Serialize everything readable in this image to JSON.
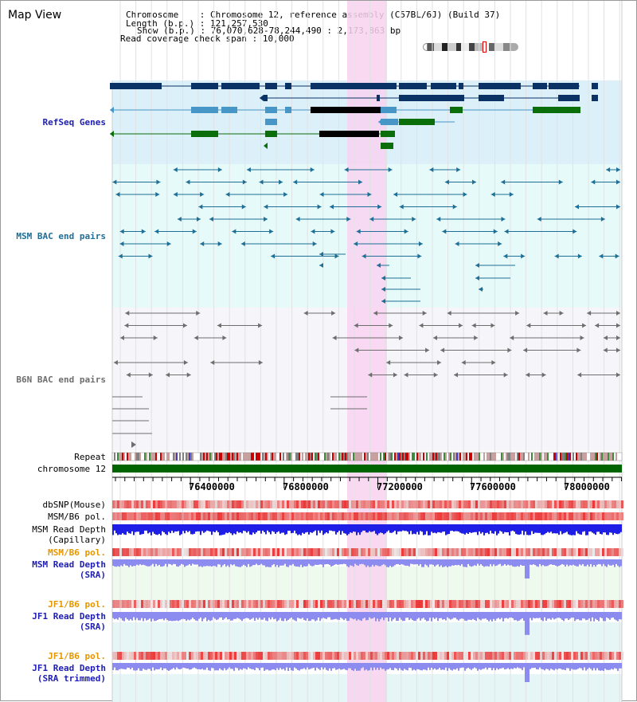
{
  "header": {
    "title": "Map View",
    "chromosome_label": "Chromosome",
    "chromosome_value": "Chromosome 12, reference assembly (C57BL/6J) (Build 37)",
    "length_label": "Length (b.p.)",
    "length_value": "121,257,530",
    "show_label": "Show (b.p.)",
    "show_value": "76,070,628-78,244,490 : 2,173,863 bp",
    "span_label": "Read coverage check span",
    "span_value": "10,000"
  },
  "tracks": {
    "refseq": "RefSeq Genes",
    "msm_bac": "MSM BAC end pairs",
    "b6n_bac": "B6N BAC end pairs",
    "repeat": "Repeat",
    "chromosome": "chromosome 12",
    "dbsnp": "dbSNP(Mouse)",
    "msm_b6_pol_1": "MSM/B6 pol.",
    "msm_read_depth_cap_1": "MSM Read Depth",
    "msm_read_depth_cap_2": "(Capillary)",
    "msm_b6_pol_2": "MSM/B6 pol.",
    "msm_read_depth_sra_1": "MSM Read Depth",
    "msm_read_depth_sra_2": "(SRA)",
    "jf1_b6_pol_1": "JF1/B6 pol.",
    "jf1_read_depth_sra_1": "JF1 Read Depth",
    "jf1_read_depth_sra_2": "(SRA)",
    "jf1_b6_pol_2": "JF1/B6 pol.",
    "jf1_read_depth_trim_1": "JF1 Read Depth",
    "jf1_read_depth_trim_2": "(SRA trimmed)"
  },
  "axis": {
    "ticks": [
      "76400000",
      "76800000",
      "77200000",
      "77600000",
      "78000000"
    ]
  },
  "colors": {
    "refseq_bg": "#dcf0fa",
    "msm_bg": "#e6fafa",
    "b6n_bg": "#f5f5fa",
    "highlight": "#f8d2f0",
    "gene_dark": "#0a3264",
    "gene_mid": "#4696c8",
    "gene_green": "#0a6e0a",
    "msm_line": "#1e6e96",
    "b6n_line": "#6e6e6e",
    "depth_blue": "#1e1ee6",
    "depth_light": "#8c8cf0",
    "chrom_green": "#006400",
    "label_blue": "#1e1eb4",
    "label_orange": "#e69600",
    "label_teal": "#1e6e96"
  }
}
